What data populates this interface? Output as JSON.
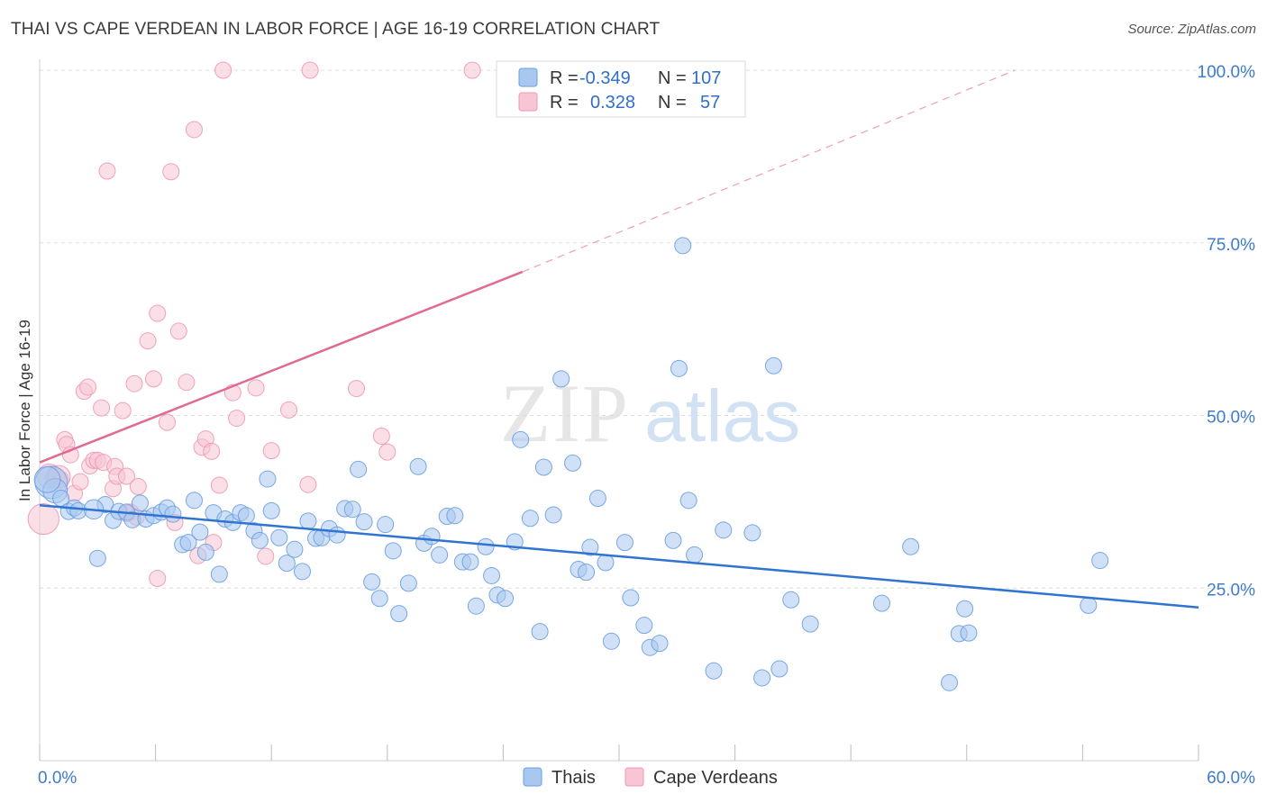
{
  "title": "THAI VS CAPE VERDEAN IN LABOR FORCE | AGE 16-19 CORRELATION CHART",
  "source": "Source: ZipAtlas.com",
  "watermark": {
    "zip": "ZIP",
    "atlas": "atlas"
  },
  "colors": {
    "thai_fill": "#a9c8f0",
    "thai_stroke": "#6a9fe0",
    "thai_line": "#2f74d0",
    "cv_fill": "#f7c5d4",
    "cv_stroke": "#ee98b4",
    "cv_line": "#e06a92",
    "grid": "#dddddd",
    "axis_text": "#3d7cc9"
  },
  "legend": {
    "rows": [
      {
        "r_label": "R =",
        "r_value": "-0.349",
        "n_label": "N =",
        "n_value": "107"
      },
      {
        "r_label": "R =",
        "r_value": "0.328",
        "n_label": "N =",
        "n_value": "57"
      }
    ]
  },
  "chart_data": {
    "type": "scatter",
    "title": "THAI VS CAPE VERDEAN IN LABOR FORCE | AGE 16-19 CORRELATION CHART",
    "xlabel": "",
    "ylabel": "In Labor Force | Age 16-19",
    "xlim": [
      0,
      60
    ],
    "ylim": [
      0,
      100
    ],
    "x_ticks_labeled": [
      "0.0%",
      "60.0%"
    ],
    "y_ticks_labeled": [
      "25.0%",
      "50.0%",
      "75.0%",
      "100.0%"
    ],
    "y_tick_values": [
      25,
      50,
      75,
      100
    ],
    "grid": true,
    "legend_position": "top-center",
    "series": [
      {
        "name": "Thais",
        "trend": {
          "x0": 0,
          "y0": 37.0,
          "x1": 60,
          "y1": 22.2
        },
        "points": [
          [
            0.6,
            40.3,
            2
          ],
          [
            0.8,
            39.1,
            1.5
          ],
          [
            1.1,
            38.0,
            1
          ],
          [
            1.5,
            36.1,
            1
          ],
          [
            1.8,
            36.6,
            1
          ],
          [
            2.0,
            36.2,
            1
          ],
          [
            3.0,
            29.3,
            1
          ],
          [
            3.4,
            37.1,
            1
          ],
          [
            3.8,
            34.8,
            1
          ],
          [
            4.1,
            36.1,
            1
          ],
          [
            4.5,
            36.0,
            1
          ],
          [
            4.8,
            34.9,
            1
          ],
          [
            5.2,
            37.3,
            1
          ],
          [
            5.5,
            35.0,
            1
          ],
          [
            5.9,
            35.5,
            1
          ],
          [
            6.3,
            36.0,
            1
          ],
          [
            6.6,
            36.6,
            1
          ],
          [
            6.9,
            35.7,
            1
          ],
          [
            7.4,
            31.3,
            1
          ],
          [
            7.7,
            31.6,
            1
          ],
          [
            8.0,
            37.7,
            1
          ],
          [
            8.3,
            33.1,
            1
          ],
          [
            8.6,
            30.2,
            1
          ],
          [
            9.0,
            35.9,
            1
          ],
          [
            9.3,
            27.0,
            1
          ],
          [
            9.6,
            35.0,
            1
          ],
          [
            10.0,
            34.5,
            1
          ],
          [
            10.4,
            35.9,
            1
          ],
          [
            10.7,
            35.5,
            1
          ],
          [
            11.1,
            33.3,
            1
          ],
          [
            11.4,
            31.9,
            1
          ],
          [
            11.8,
            40.8,
            1
          ],
          [
            12.0,
            36.2,
            1
          ],
          [
            12.4,
            32.3,
            1
          ],
          [
            12.8,
            28.6,
            1
          ],
          [
            13.2,
            30.6,
            1
          ],
          [
            13.6,
            27.4,
            1
          ],
          [
            13.9,
            34.7,
            1
          ],
          [
            14.3,
            32.2,
            1
          ],
          [
            14.6,
            32.3,
            1
          ],
          [
            15.0,
            33.6,
            1
          ],
          [
            15.4,
            32.7,
            1
          ],
          [
            15.8,
            36.5,
            1
          ],
          [
            16.2,
            36.4,
            1
          ],
          [
            16.5,
            42.2,
            1
          ],
          [
            16.8,
            34.6,
            1
          ],
          [
            17.2,
            25.9,
            1
          ],
          [
            17.6,
            23.5,
            1
          ],
          [
            17.9,
            34.2,
            1
          ],
          [
            18.3,
            30.4,
            1
          ],
          [
            18.6,
            21.3,
            1
          ],
          [
            19.1,
            25.7,
            1
          ],
          [
            19.6,
            42.6,
            1
          ],
          [
            19.9,
            31.5,
            1
          ],
          [
            20.3,
            32.5,
            1
          ],
          [
            20.7,
            29.8,
            1
          ],
          [
            21.1,
            35.4,
            1
          ],
          [
            21.5,
            35.5,
            1
          ],
          [
            21.9,
            28.8,
            1
          ],
          [
            22.3,
            28.8,
            1
          ],
          [
            22.6,
            22.4,
            1
          ],
          [
            23.1,
            31.0,
            1
          ],
          [
            23.4,
            26.8,
            1
          ],
          [
            23.7,
            24.0,
            1
          ],
          [
            24.1,
            23.5,
            1
          ],
          [
            24.6,
            31.7,
            1
          ],
          [
            24.9,
            46.5,
            1
          ],
          [
            25.4,
            35.1,
            1
          ],
          [
            25.9,
            18.7,
            1
          ],
          [
            26.1,
            42.5,
            1
          ],
          [
            26.6,
            35.6,
            1
          ],
          [
            27.0,
            55.3,
            1
          ],
          [
            27.6,
            43.1,
            1
          ],
          [
            27.9,
            27.7,
            1
          ],
          [
            28.3,
            27.3,
            1
          ],
          [
            28.5,
            30.9,
            1
          ],
          [
            28.9,
            38.0,
            1
          ],
          [
            29.3,
            28.7,
            1
          ],
          [
            29.6,
            17.3,
            1
          ],
          [
            30.3,
            31.6,
            1
          ],
          [
            30.6,
            23.6,
            1
          ],
          [
            31.3,
            19.6,
            1
          ],
          [
            31.6,
            16.4,
            1
          ],
          [
            32.1,
            17.0,
            1
          ],
          [
            32.8,
            31.9,
            1
          ],
          [
            33.3,
            74.6,
            1
          ],
          [
            33.6,
            37.7,
            1
          ],
          [
            33.9,
            29.8,
            1
          ],
          [
            34.9,
            13.0,
            1
          ],
          [
            35.4,
            33.4,
            1
          ],
          [
            36.9,
            33.0,
            1
          ],
          [
            37.4,
            12.0,
            1
          ],
          [
            38.0,
            57.2,
            1
          ],
          [
            38.3,
            13.3,
            1
          ],
          [
            33.1,
            56.8,
            1
          ],
          [
            38.9,
            23.3,
            1
          ],
          [
            39.9,
            19.8,
            1
          ],
          [
            43.6,
            22.8,
            1
          ],
          [
            45.1,
            31.0,
            1
          ],
          [
            47.1,
            11.3,
            1
          ],
          [
            47.6,
            18.4,
            1
          ],
          [
            47.9,
            22.0,
            1
          ],
          [
            48.1,
            18.5,
            1
          ],
          [
            54.3,
            22.5,
            1
          ],
          [
            54.9,
            29.0,
            1
          ],
          [
            0.4,
            40.7,
            1.6
          ],
          [
            2.8,
            36.4,
            1.2
          ]
        ]
      },
      {
        "name": "Cape Verdeans",
        "trend": {
          "x0": 0,
          "y0": 43.2,
          "x1": 25,
          "y1": 70.8,
          "dashed_to_x": 50.5,
          "dashed_to_y": 100.0
        },
        "points": [
          [
            0.2,
            35.0,
            1.9
          ],
          [
            0.5,
            41.2,
            1.5
          ],
          [
            0.8,
            41.0,
            1.2
          ],
          [
            1.1,
            40.7,
            1
          ],
          [
            1.3,
            46.5,
            1
          ],
          [
            1.4,
            45.8,
            1
          ],
          [
            1.6,
            44.3,
            1
          ],
          [
            1.8,
            38.7,
            1
          ],
          [
            2.1,
            40.4,
            1
          ],
          [
            2.3,
            53.5,
            1
          ],
          [
            2.5,
            54.1,
            1
          ],
          [
            2.6,
            42.7,
            1
          ],
          [
            2.8,
            43.5,
            1
          ],
          [
            3.0,
            43.5,
            1
          ],
          [
            3.2,
            51.1,
            1
          ],
          [
            3.3,
            43.2,
            1
          ],
          [
            3.5,
            85.4,
            1
          ],
          [
            3.8,
            39.4,
            1
          ],
          [
            3.9,
            42.6,
            1
          ],
          [
            4.0,
            41.2,
            1
          ],
          [
            4.3,
            50.7,
            1
          ],
          [
            4.5,
            41.2,
            1
          ],
          [
            4.7,
            36.0,
            1
          ],
          [
            4.9,
            54.6,
            1
          ],
          [
            5.1,
            39.7,
            1
          ],
          [
            5.0,
            35.3,
            1
          ],
          [
            4.5,
            35.8,
            1
          ],
          [
            5.6,
            60.8,
            1
          ],
          [
            5.9,
            55.3,
            1
          ],
          [
            6.1,
            64.8,
            1
          ],
          [
            6.1,
            26.4,
            1
          ],
          [
            6.6,
            49.0,
            1
          ],
          [
            6.8,
            85.3,
            1
          ],
          [
            7.0,
            34.5,
            1
          ],
          [
            7.2,
            62.2,
            1
          ],
          [
            7.6,
            54.8,
            1
          ],
          [
            8.0,
            91.4,
            1
          ],
          [
            8.2,
            29.7,
            1
          ],
          [
            8.4,
            45.4,
            1
          ],
          [
            8.6,
            46.6,
            1
          ],
          [
            8.9,
            44.8,
            1
          ],
          [
            9.0,
            31.6,
            1
          ],
          [
            9.3,
            39.9,
            1
          ],
          [
            9.5,
            100.0,
            1
          ],
          [
            10.0,
            53.3,
            1
          ],
          [
            10.2,
            49.6,
            1
          ],
          [
            11.2,
            54.0,
            1
          ],
          [
            11.7,
            29.6,
            1
          ],
          [
            12.0,
            44.9,
            1
          ],
          [
            12.9,
            50.8,
            1
          ],
          [
            13.9,
            40.0,
            1
          ],
          [
            14.0,
            100.0,
            1
          ],
          [
            16.4,
            53.9,
            1
          ],
          [
            17.7,
            47.0,
            1
          ],
          [
            18.0,
            44.7,
            1
          ],
          [
            22.4,
            100.0,
            1
          ],
          [
            1.0,
            41.1,
            1.4
          ]
        ]
      }
    ]
  },
  "bottom_legend": [
    {
      "label": "Thais"
    },
    {
      "label": "Cape Verdeans"
    }
  ]
}
